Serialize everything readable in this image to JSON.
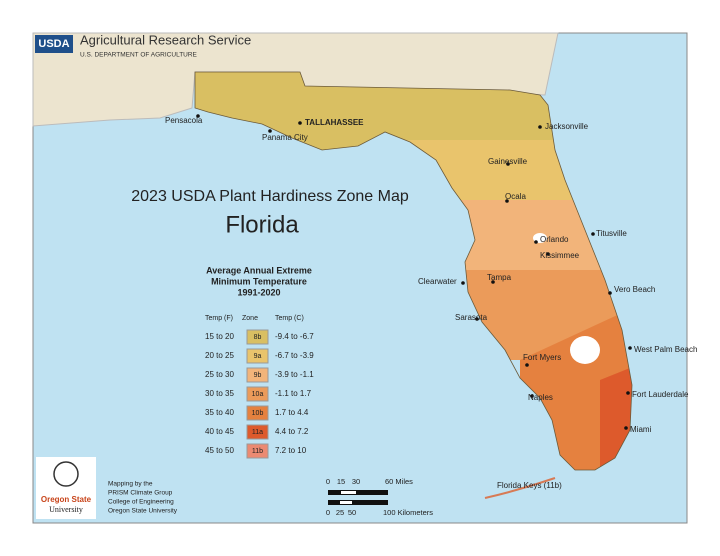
{
  "header": {
    "logo": "USDA",
    "agency": "Agricultural Research Service",
    "department": "U.S. DEPARTMENT OF AGRICULTURE"
  },
  "map": {
    "title": "2023 USDA Plant Hardiness Zone Map",
    "state": "Florida",
    "cities": [
      "Pensacola",
      "Panama City",
      "TALLAHASSEE",
      "Jacksonville",
      "Gainesville",
      "Ocala",
      "Orlando",
      "Titusville",
      "Kissimmee",
      "Clearwater",
      "Tampa",
      "Sarasota",
      "Vero Beach",
      "West Palm Beach",
      "Fort Myers",
      "Naples",
      "Fort Lauderdale",
      "Miami"
    ],
    "keys_label": "Florida Keys (11b)"
  },
  "legend": {
    "title": [
      "Average Annual Extreme",
      "Minimum Temperature",
      "1991-2020"
    ],
    "columns": [
      "Temp (F)",
      "Zone",
      "Temp (C)"
    ],
    "rows": [
      {
        "temp_f": "15 to 20",
        "zone": "8b",
        "temp_c": "-9.4 to -6.7",
        "color": "#d9bf62"
      },
      {
        "temp_f": "20 to 25",
        "zone": "9a",
        "temp_c": "-6.7 to -3.9",
        "color": "#e9c46c"
      },
      {
        "temp_f": "25 to 30",
        "zone": "9b",
        "temp_c": "-3.9 to -1.1",
        "color": "#f2b47a"
      },
      {
        "temp_f": "30 to 35",
        "zone": "10a",
        "temp_c": "-1.1 to 1.7",
        "color": "#eb9b5a"
      },
      {
        "temp_f": "35 to 40",
        "zone": "10b",
        "temp_c": "1.7 to 4.4",
        "color": "#e5813f"
      },
      {
        "temp_f": "40 to 45",
        "zone": "11a",
        "temp_c": "4.4 to 7.2",
        "color": "#dd5a2c"
      },
      {
        "temp_f": "45 to 50",
        "zone": "11b",
        "temp_c": "7.2 to 10",
        "color": "#eb8a72"
      }
    ]
  },
  "scale": {
    "miles": [
      "0",
      "15",
      "30",
      "60 Miles"
    ],
    "kilometers": [
      "0",
      "25",
      "50",
      "100 Kilometers"
    ]
  },
  "credits": {
    "logo": [
      "Oregon State",
      "University"
    ],
    "lines": [
      "Mapping by the",
      "PRISM Climate Group",
      "College of Engineering",
      "Oregon State University"
    ]
  }
}
